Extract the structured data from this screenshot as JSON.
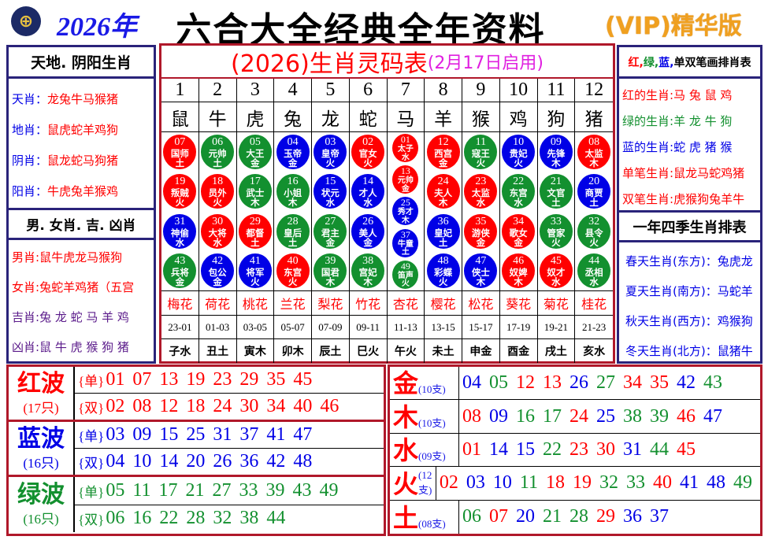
{
  "header": {
    "logo": "HKJC",
    "year": "2026年",
    "title": "六合大全经典全年资料",
    "vip": "(VIP)精华版"
  },
  "colors": {
    "red": "#ff0000",
    "green": "#13902f",
    "blue": "#0000e6",
    "purple": "#5a1a8a",
    "navy": "#2a237a",
    "border_red": "#b0182a"
  },
  "left": {
    "title1": "天地. 阴阳生肖",
    "items1": [
      {
        "label": "天肖：",
        "value": "龙兔牛马猴猪"
      },
      {
        "label": "地肖：",
        "value": "鼠虎蛇羊鸡狗"
      },
      {
        "label": "阴肖：",
        "value": "鼠龙蛇马狗猪"
      },
      {
        "label": "阳肖：",
        "value": "牛虎兔羊猴鸡"
      }
    ],
    "title2": "男. 女肖. 吉. 凶肖",
    "items2": [
      {
        "label": "男肖:",
        "value": "鼠牛虎龙马猴狗",
        "color": "red"
      },
      {
        "label": "女肖:",
        "value": "兔蛇羊鸡猪（五宫",
        "color": "red"
      },
      {
        "label": "吉肖:",
        "value": "兔 龙 蛇 马 羊 鸡",
        "color": "purple"
      },
      {
        "label": "凶肖:",
        "value": "鼠 牛 虎 猴 狗 猪",
        "color": "purple"
      }
    ]
  },
  "middle": {
    "title": "(2026)生肖灵码表",
    "subtitle": "(2月17日启用)",
    "columns": [
      {
        "num": "1",
        "zodiac": "鼠",
        "flower": "梅花",
        "time": "23-01",
        "branch": "子水",
        "balls": [
          {
            "n": "07",
            "name": "国师",
            "el": "土",
            "c": "red"
          },
          {
            "n": "19",
            "name": "叛贼",
            "el": "火",
            "c": "red"
          },
          {
            "n": "31",
            "name": "神偷",
            "el": "水",
            "c": "blue"
          },
          {
            "n": "43",
            "name": "兵将",
            "el": "金",
            "c": "green"
          }
        ]
      },
      {
        "num": "2",
        "zodiac": "牛",
        "flower": "荷花",
        "time": "01-03",
        "branch": "丑土",
        "balls": [
          {
            "n": "06",
            "name": "元帅",
            "el": "土",
            "c": "green"
          },
          {
            "n": "18",
            "name": "员外",
            "el": "火",
            "c": "red"
          },
          {
            "n": "30",
            "name": "大将",
            "el": "水",
            "c": "red"
          },
          {
            "n": "42",
            "name": "包公",
            "el": "金",
            "c": "blue"
          }
        ]
      },
      {
        "num": "3",
        "zodiac": "虎",
        "flower": "桃花",
        "time": "03-05",
        "branch": "寅木",
        "balls": [
          {
            "n": "05",
            "name": "大王",
            "el": "金",
            "c": "green"
          },
          {
            "n": "17",
            "name": "武士",
            "el": "木",
            "c": "green"
          },
          {
            "n": "29",
            "name": "都督",
            "el": "土",
            "c": "red"
          },
          {
            "n": "41",
            "name": "将军",
            "el": "火",
            "c": "blue"
          }
        ]
      },
      {
        "num": "4",
        "zodiac": "兔",
        "flower": "兰花",
        "time": "05-07",
        "branch": "卯木",
        "balls": [
          {
            "n": "04",
            "name": "玉帝",
            "el": "金",
            "c": "blue"
          },
          {
            "n": "16",
            "name": "小姐",
            "el": "木",
            "c": "green"
          },
          {
            "n": "28",
            "name": "皇后",
            "el": "土",
            "c": "green"
          },
          {
            "n": "40",
            "name": "东宫",
            "el": "火",
            "c": "red"
          }
        ]
      },
      {
        "num": "5",
        "zodiac": "龙",
        "flower": "梨花",
        "time": "07-09",
        "branch": "辰土",
        "balls": [
          {
            "n": "03",
            "name": "皇帝",
            "el": "火",
            "c": "blue"
          },
          {
            "n": "15",
            "name": "状元",
            "el": "水",
            "c": "blue"
          },
          {
            "n": "27",
            "name": "君主",
            "el": "金",
            "c": "green"
          },
          {
            "n": "39",
            "name": "国君",
            "el": "木",
            "c": "green"
          }
        ]
      },
      {
        "num": "6",
        "zodiac": "蛇",
        "flower": "竹花",
        "time": "09-11",
        "branch": "巳火",
        "balls": [
          {
            "n": "02",
            "name": "官女",
            "el": "火",
            "c": "red"
          },
          {
            "n": "14",
            "name": "才人",
            "el": "水",
            "c": "blue"
          },
          {
            "n": "26",
            "name": "美人",
            "el": "金",
            "c": "blue"
          },
          {
            "n": "38",
            "name": "宫妃",
            "el": "木",
            "c": "green"
          }
        ]
      },
      {
        "num": "7",
        "zodiac": "马",
        "flower": "杏花",
        "time": "11-13",
        "branch": "午火",
        "balls": [
          {
            "n": "01",
            "name": "太子",
            "el": "水",
            "c": "red"
          },
          {
            "n": "13",
            "name": "元帅",
            "el": "金",
            "c": "red"
          },
          {
            "n": "25",
            "name": "秀才",
            "el": "木",
            "c": "blue"
          },
          {
            "n": "37",
            "name": "牛童",
            "el": "土",
            "c": "blue"
          },
          {
            "n": "49",
            "name": "笛声",
            "el": "火",
            "c": "green"
          }
        ]
      },
      {
        "num": "8",
        "zodiac": "羊",
        "flower": "樱花",
        "time": "13-15",
        "branch": "未土",
        "balls": [
          {
            "n": "12",
            "name": "西宫",
            "el": "金",
            "c": "red"
          },
          {
            "n": "24",
            "name": "夫人",
            "el": "木",
            "c": "red"
          },
          {
            "n": "36",
            "name": "皇妃",
            "el": "土",
            "c": "blue"
          },
          {
            "n": "48",
            "name": "彩蝶",
            "el": "火",
            "c": "blue"
          }
        ]
      },
      {
        "num": "9",
        "zodiac": "猴",
        "flower": "松花",
        "time": "15-17",
        "branch": "申金",
        "balls": [
          {
            "n": "11",
            "name": "寇王",
            "el": "火",
            "c": "green"
          },
          {
            "n": "23",
            "name": "太监",
            "el": "水",
            "c": "red"
          },
          {
            "n": "35",
            "name": "游侠",
            "el": "金",
            "c": "red"
          },
          {
            "n": "47",
            "name": "侠士",
            "el": "木",
            "c": "blue"
          }
        ]
      },
      {
        "num": "10",
        "zodiac": "鸡",
        "flower": "葵花",
        "time": "17-19",
        "branch": "酉金",
        "balls": [
          {
            "n": "10",
            "name": "贵妃",
            "el": "火",
            "c": "blue"
          },
          {
            "n": "22",
            "name": "东宫",
            "el": "水",
            "c": "green"
          },
          {
            "n": "34",
            "name": "歌女",
            "el": "金",
            "c": "red"
          },
          {
            "n": "46",
            "name": "奴婢",
            "el": "木",
            "c": "red"
          }
        ]
      },
      {
        "num": "11",
        "zodiac": "狗",
        "flower": "菊花",
        "time": "19-21",
        "branch": "戌土",
        "balls": [
          {
            "n": "09",
            "name": "先锋",
            "el": "木",
            "c": "blue"
          },
          {
            "n": "21",
            "name": "文官",
            "el": "土",
            "c": "green"
          },
          {
            "n": "33",
            "name": "管家",
            "el": "火",
            "c": "green"
          },
          {
            "n": "45",
            "name": "奴才",
            "el": "水",
            "c": "red"
          }
        ]
      },
      {
        "num": "12",
        "zodiac": "猪",
        "flower": "桂花",
        "time": "21-23",
        "branch": "亥水",
        "balls": [
          {
            "n": "08",
            "name": "太监",
            "el": "木",
            "c": "red"
          },
          {
            "n": "20",
            "name": "商贾",
            "el": "土",
            "c": "blue"
          },
          {
            "n": "32",
            "name": "县令",
            "el": "火",
            "c": "green"
          },
          {
            "n": "44",
            "name": "丞相",
            "el": "水",
            "c": "green"
          }
        ]
      }
    ]
  },
  "right": {
    "title1_parts": [
      {
        "t": "红,",
        "c": "red"
      },
      {
        "t": " 绿,",
        "c": "green"
      },
      {
        "t": " 蓝,",
        "c": "blue"
      },
      {
        "t": " 单双笔画排肖表",
        "c": "black"
      }
    ],
    "items1": [
      {
        "label": "红的生肖:",
        "value": "马 兔 鼠 鸡",
        "c": "red"
      },
      {
        "label": "绿的生肖:",
        "value": "羊 龙 牛 狗",
        "c": "green"
      },
      {
        "label": "蓝的生肖:",
        "value": "蛇 虎 猪 猴",
        "c": "blue"
      },
      {
        "label": "单笔生肖:",
        "value": "鼠龙马蛇鸡猪",
        "c": "red"
      },
      {
        "label": "双笔生肖:",
        "value": "虎猴狗兔羊牛",
        "c": "red"
      }
    ],
    "title2": "一年四季生肖排表",
    "items2": [
      {
        "label": "春天生肖(东方)",
        "value": "：兔虎龙"
      },
      {
        "label": "夏天生肖(南方)",
        "value": "：马蛇羊"
      },
      {
        "label": "秋天生肖(西方)",
        "value": "：鸡猴狗"
      },
      {
        "label": "冬天生肖(北方)",
        "value": "：鼠猪牛"
      }
    ]
  },
  "waves": [
    {
      "name": "红波",
      "count": "(17只)",
      "c": "red",
      "rows": [
        {
          "tag": "{单}",
          "nums": [
            "01",
            "07",
            "13",
            "19",
            "23",
            "29",
            "35",
            "45"
          ]
        },
        {
          "tag": "{双}",
          "nums": [
            "02",
            "08",
            "12",
            "18",
            "24",
            "30",
            "34",
            "40",
            "46"
          ]
        }
      ]
    },
    {
      "name": "蓝波",
      "count": "(16只)",
      "c": "blue",
      "rows": [
        {
          "tag": "{单}",
          "nums": [
            "03",
            "09",
            "15",
            "25",
            "31",
            "37",
            "41",
            "47"
          ]
        },
        {
          "tag": "{双}",
          "nums": [
            "04",
            "10",
            "14",
            "20",
            "26",
            "36",
            "42",
            "48"
          ]
        }
      ]
    },
    {
      "name": "绿波",
      "count": "(16只)",
      "c": "green",
      "rows": [
        {
          "tag": "{单}",
          "nums": [
            "05",
            "11",
            "17",
            "21",
            "27",
            "33",
            "39",
            "43",
            "49"
          ]
        },
        {
          "tag": "{双}",
          "nums": [
            "06",
            "16",
            "22",
            "28",
            "32",
            "38",
            "44"
          ]
        }
      ]
    }
  ],
  "elements": [
    {
      "name": "金",
      "count": "(10支)",
      "nums": [
        "04",
        "05",
        "12",
        "13",
        "26",
        "27",
        "34",
        "35",
        "42",
        "43"
      ]
    },
    {
      "name": "木",
      "count": "(10支)",
      "nums": [
        "08",
        "09",
        "16",
        "17",
        "24",
        "25",
        "38",
        "39",
        "46",
        "47"
      ]
    },
    {
      "name": "水",
      "count": "(09支)",
      "nums": [
        "01",
        "14",
        "15",
        "22",
        "23",
        "30",
        "31",
        "44",
        "45"
      ]
    },
    {
      "name": "火",
      "count": "(12支)",
      "nums": [
        "02",
        "03",
        "10",
        "11",
        "18",
        "19",
        "32",
        "33",
        "40",
        "41",
        "48",
        "49"
      ]
    },
    {
      "name": "土",
      "count": "(08支)",
      "nums": [
        "06",
        "07",
        "20",
        "21",
        "28",
        "29",
        "36",
        "37"
      ]
    }
  ]
}
